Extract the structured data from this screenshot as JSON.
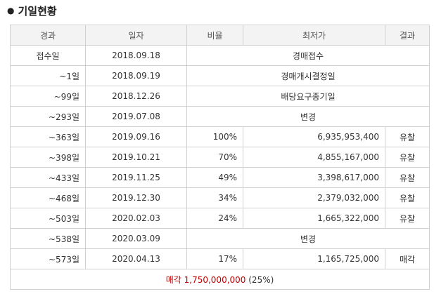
{
  "title": "기일현황",
  "table": {
    "headers": [
      "경과",
      "일자",
      "비율",
      "최저가",
      "결과"
    ],
    "rows": [
      {
        "elapsed": "접수일",
        "date": "2018.09.18",
        "note": "경매접수"
      },
      {
        "elapsed": "~1일",
        "date": "2018.09.19",
        "note": "경매개시결정일"
      },
      {
        "elapsed": "~99일",
        "date": "2018.12.26",
        "note": "배당요구종기일"
      },
      {
        "elapsed": "~293일",
        "date": "2019.07.08",
        "note": "변경"
      },
      {
        "elapsed": "~363일",
        "date": "2019.09.16",
        "ratio": "100%",
        "price": "6,935,953,400",
        "result": "유찰"
      },
      {
        "elapsed": "~398일",
        "date": "2019.10.21",
        "ratio": "70%",
        "price": "4,855,167,000",
        "result": "유찰"
      },
      {
        "elapsed": "~433일",
        "date": "2019.11.25",
        "ratio": "49%",
        "price": "3,398,617,000",
        "result": "유찰"
      },
      {
        "elapsed": "~468일",
        "date": "2019.12.30",
        "ratio": "34%",
        "price": "2,379,032,000",
        "result": "유찰"
      },
      {
        "elapsed": "~503일",
        "date": "2020.02.03",
        "ratio": "24%",
        "price": "1,665,322,000",
        "result": "유찰"
      },
      {
        "elapsed": "~538일",
        "date": "2020.03.09",
        "note": "변경"
      },
      {
        "elapsed": "~573일",
        "date": "2020.04.13",
        "ratio": "17%",
        "price": "1,165,725,000",
        "result": "매각"
      }
    ],
    "footer": {
      "label": "매각",
      "amount": "1,750,000,000",
      "ratio": "(25%)"
    }
  }
}
